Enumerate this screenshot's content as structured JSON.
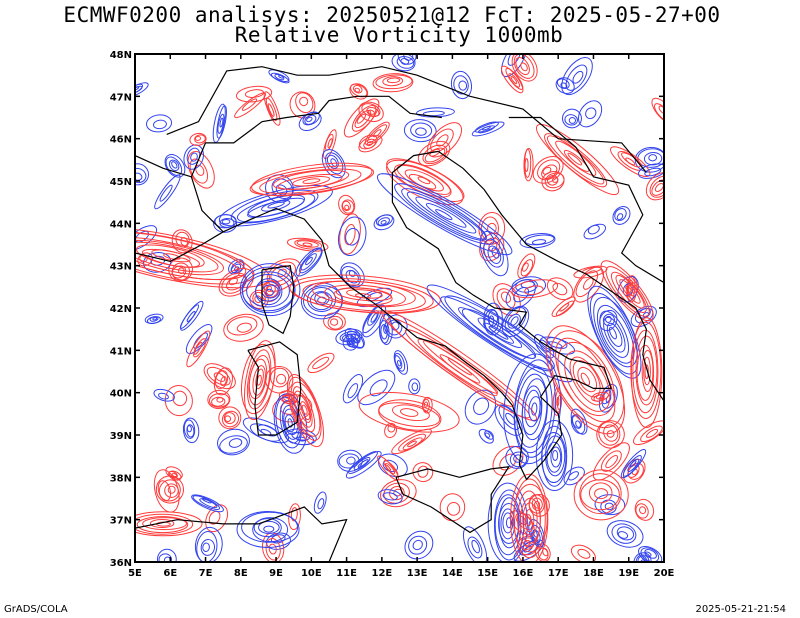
{
  "title_line1": "ECMWF0200 analisys: 20250521@12 FcT: 2025-05-27+00",
  "title_line2": "Relative Vorticity 1000mb",
  "footer_left": "GrADS/COLA",
  "footer_right": "2025-05-21-21:54",
  "map": {
    "projection": "lat-lon",
    "lon_range": [
      5,
      20
    ],
    "lat_range": [
      36,
      48
    ],
    "x_tick_labels": [
      "5E",
      "6E",
      "7E",
      "8E",
      "9E",
      "10E",
      "11E",
      "12E",
      "13E",
      "14E",
      "15E",
      "16E",
      "17E",
      "18E",
      "19E",
      "20E"
    ],
    "y_tick_labels": [
      "36N",
      "37N",
      "38N",
      "39N",
      "40N",
      "41N",
      "42N",
      "43N",
      "44N",
      "45N",
      "46N",
      "47N",
      "48N"
    ],
    "colors": {
      "positive_contour": "#ff3b3b",
      "negative_contour": "#3344ee",
      "zero_contour": "#b45a8c",
      "coastline": "#000000",
      "frame": "#000000"
    }
  }
}
